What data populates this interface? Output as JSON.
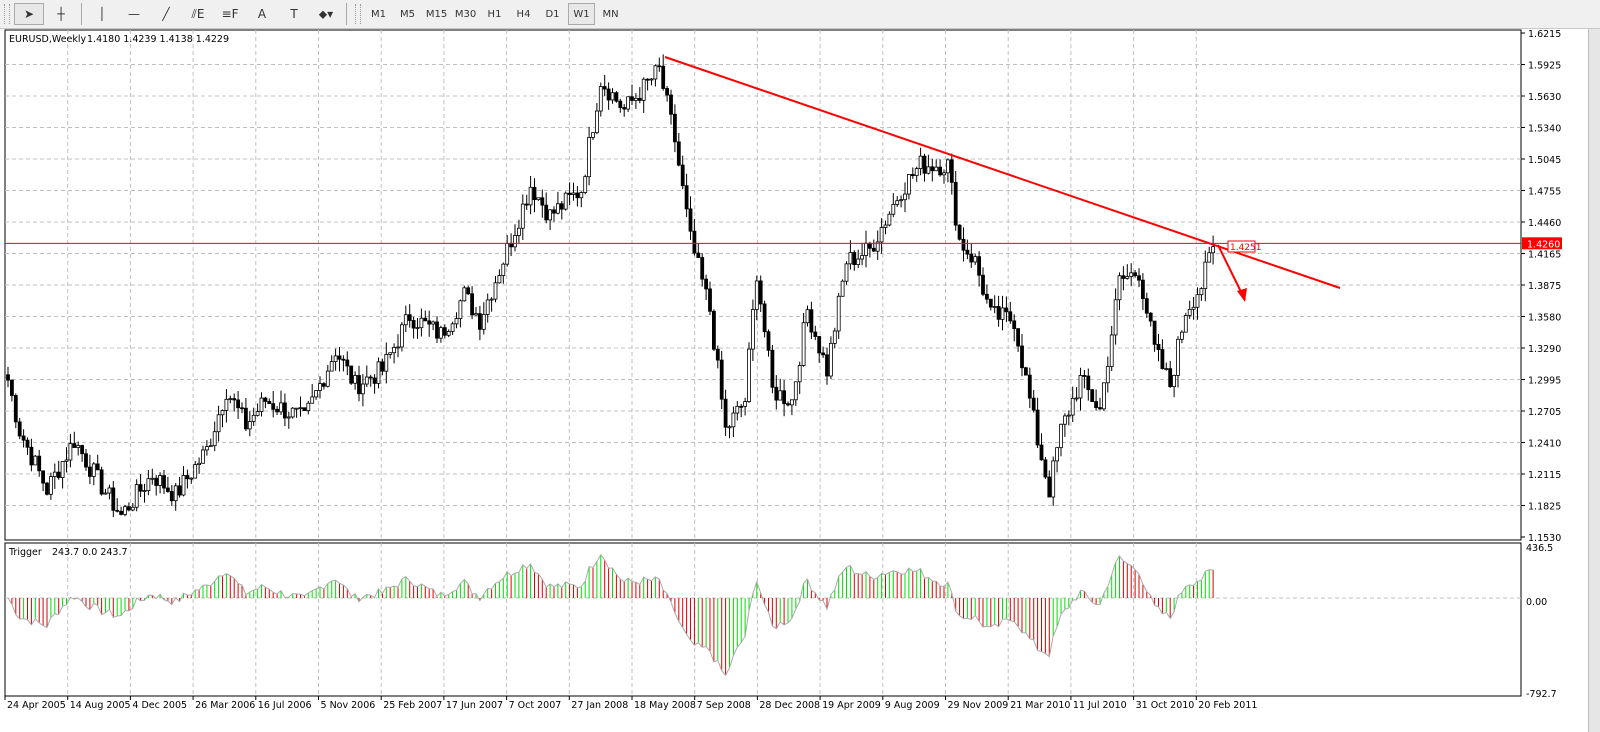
{
  "toolbar": {
    "tools": [
      {
        "name": "cursor-tool",
        "icon": "arrow-cursor-icon",
        "glyph": "➤"
      },
      {
        "name": "crosshair-tool",
        "icon": "crosshair-icon",
        "glyph": "┼"
      },
      {
        "name": "vertical-line-tool",
        "icon": "vertical-line-icon",
        "glyph": "│"
      },
      {
        "name": "horizontal-line-tool",
        "icon": "horizontal-line-icon",
        "glyph": "—"
      },
      {
        "name": "trendline-tool",
        "icon": "trendline-icon",
        "glyph": "╱"
      },
      {
        "name": "equidistant-channel-tool",
        "icon": "channel-icon",
        "glyph": "⫽E"
      },
      {
        "name": "fibonacci-tool",
        "icon": "fibonacci-icon",
        "glyph": "≡F"
      },
      {
        "name": "text-tool",
        "icon": "text-icon",
        "glyph": "A"
      },
      {
        "name": "text-label-tool",
        "icon": "text-label-icon",
        "glyph": "T"
      },
      {
        "name": "arrows-tool",
        "icon": "arrows-dropdown-icon",
        "glyph": "⬥▾"
      }
    ],
    "timeframes": [
      "M1",
      "M5",
      "M15",
      "M30",
      "H1",
      "H4",
      "D1",
      "W1",
      "MN"
    ],
    "active_timeframe": "W1"
  },
  "chart": {
    "symbol_label": "EURUSD,Weekly",
    "ohlc": "1.4180 1.4239 1.4138 1.4229",
    "indicator_label": "Trigger",
    "indicator_values": "243.7 0.0 243.7",
    "hline_price": "1.4260",
    "trend_label": "1.4251",
    "price_ticks": [
      "1.6215",
      "1.5925",
      "1.5630",
      "1.5340",
      "1.5045",
      "1.4755",
      "1.4460",
      "1.4165",
      "1.3875",
      "1.3580",
      "1.3290",
      "1.2995",
      "1.2705",
      "1.2410",
      "1.2115",
      "1.1825",
      "1.1530"
    ],
    "indicator_ticks": [
      "436.5",
      "0.00",
      "-792.7"
    ],
    "date_ticks": [
      "24 Apr 2005",
      "14 Aug 2005",
      "4 Dec 2005",
      "26 Mar 2006",
      "16 Jul 2006",
      "5 Nov 2006",
      "25 Feb 2007",
      "17 Jun 2007",
      "7 Oct 2007",
      "27 Jan 2008",
      "18 May 2008",
      "7 Sep 2008",
      "28 Dec 2008",
      "19 Apr 2009",
      "9 Aug 2009",
      "29 Nov 2009",
      "21 Mar 2010",
      "11 Jul 2010",
      "31 Oct 2010",
      "20 Feb 2011"
    ],
    "colors": {
      "line": "#ff0000",
      "up_bar": "#00e000",
      "down_bar": "#e00000",
      "grid": "#c0c0c0"
    }
  },
  "chart_data": {
    "type": "candlestick",
    "title": "EURUSD,Weekly",
    "ylim": [
      1.153,
      1.6215
    ],
    "indicator_ylim": [
      -792.7,
      436.5
    ],
    "close_keypoints_week_index": [
      [
        0,
        1.299
      ],
      [
        3,
        1.252
      ],
      [
        10,
        1.197
      ],
      [
        17,
        1.243
      ],
      [
        23,
        1.206
      ],
      [
        29,
        1.173
      ],
      [
        37,
        1.211
      ],
      [
        43,
        1.192
      ],
      [
        51,
        1.234
      ],
      [
        56,
        1.29
      ],
      [
        61,
        1.257
      ],
      [
        66,
        1.28
      ],
      [
        76,
        1.262
      ],
      [
        84,
        1.327
      ],
      [
        89,
        1.294
      ],
      [
        96,
        1.308
      ],
      [
        103,
        1.359
      ],
      [
        111,
        1.341
      ],
      [
        117,
        1.378
      ],
      [
        121,
        1.355
      ],
      [
        128,
        1.42
      ],
      [
        134,
        1.48
      ],
      [
        139,
        1.452
      ],
      [
        147,
        1.476
      ],
      [
        152,
        1.578
      ],
      [
        158,
        1.55
      ],
      [
        167,
        1.587
      ],
      [
        171,
        1.522
      ],
      [
        175,
        1.429
      ],
      [
        180,
        1.364
      ],
      [
        184,
        1.252
      ],
      [
        189,
        1.28
      ],
      [
        192,
        1.4
      ],
      [
        196,
        1.289
      ],
      [
        201,
        1.28
      ],
      [
        205,
        1.364
      ],
      [
        210,
        1.308
      ],
      [
        215,
        1.409
      ],
      [
        221,
        1.42
      ],
      [
        229,
        1.476
      ],
      [
        234,
        1.499
      ],
      [
        241,
        1.499
      ],
      [
        244,
        1.429
      ],
      [
        248,
        1.409
      ],
      [
        252,
        1.359
      ],
      [
        258,
        1.355
      ],
      [
        264,
        1.243
      ],
      [
        267,
        1.197
      ],
      [
        270,
        1.252
      ],
      [
        275,
        1.299
      ],
      [
        280,
        1.271
      ],
      [
        285,
        1.391
      ],
      [
        290,
        1.4
      ],
      [
        294,
        1.327
      ],
      [
        298,
        1.294
      ],
      [
        302,
        1.364
      ],
      [
        306,
        1.387
      ],
      [
        309,
        1.4229
      ]
    ]
  }
}
